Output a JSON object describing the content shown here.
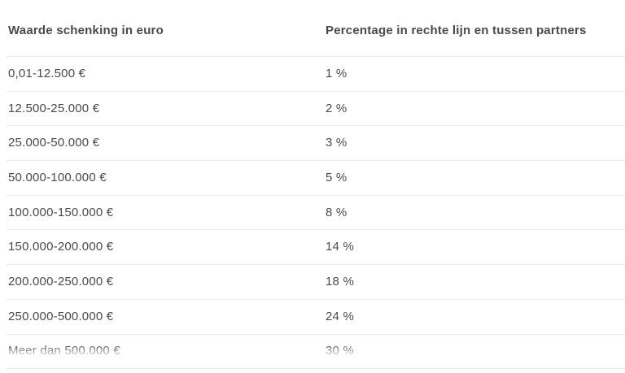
{
  "colors": {
    "background": "#ffffff",
    "text-color": "#4a4a4a",
    "header-text-color": "#4a4a4a",
    "border-color": "#ebebeb"
  },
  "table": {
    "columns": [
      {
        "label": "Waarde schenking in euro"
      },
      {
        "label": "Percentage in rechte lijn en tussen partners"
      }
    ],
    "rows": [
      {
        "value_range": "0,01-12.500 €",
        "percentage": "1 %"
      },
      {
        "value_range": "12.500-25.000 €",
        "percentage": "2 %"
      },
      {
        "value_range": "25.000-50.000 €",
        "percentage": "3 %"
      },
      {
        "value_range": "50.000-100.000 €",
        "percentage": "5 %"
      },
      {
        "value_range": "100.000-150.000 €",
        "percentage": "8 %"
      },
      {
        "value_range": "150.000-200.000 €",
        "percentage": "14 %"
      },
      {
        "value_range": "200.000-250.000 €",
        "percentage": "18 %"
      },
      {
        "value_range": "250.000-500.000 €",
        "percentage": "24 %"
      },
      {
        "value_range": "Meer dan 500.000 €",
        "percentage": "30 %"
      }
    ]
  }
}
